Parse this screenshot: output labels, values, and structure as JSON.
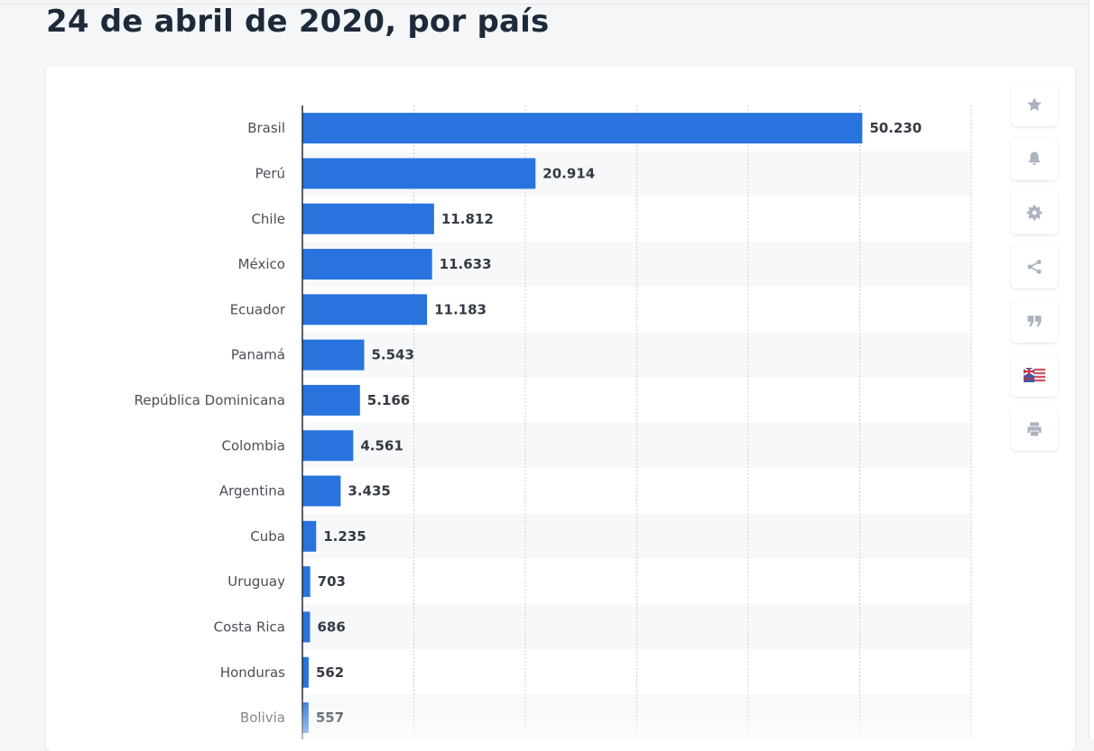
{
  "header": {
    "title": "24 de abril de 2020, por país"
  },
  "colors": {
    "bar": "#2873de",
    "grid": "#c9cdd3",
    "axis": "#1f2a36",
    "label": "#4a4f57",
    "value": "#333a44",
    "stripe": "#f7f8f9"
  },
  "toolbar": {
    "items": [
      {
        "name": "favorite-button",
        "icon": "star-icon"
      },
      {
        "name": "notification-button",
        "icon": "bell-icon"
      },
      {
        "name": "settings-button",
        "icon": "gear-icon"
      },
      {
        "name": "share-button",
        "icon": "share-icon"
      },
      {
        "name": "cite-button",
        "icon": "quote-icon"
      },
      {
        "name": "language-button",
        "icon": "flag-icon"
      },
      {
        "name": "print-button",
        "icon": "printer-icon"
      }
    ]
  },
  "chart_data": {
    "type": "bar",
    "orientation": "horizontal",
    "title": "24 de abril de 2020, por país",
    "xlabel": "",
    "ylabel": "",
    "xlim": [
      0,
      60000
    ],
    "grid": true,
    "categories": [
      "Brasil",
      "Perú",
      "Chile",
      "México",
      "Ecuador",
      "Panamá",
      "República Dominicana",
      "Colombia",
      "Argentina",
      "Cuba",
      "Uruguay",
      "Costa Rica",
      "Honduras",
      "Bolivia"
    ],
    "values": [
      50230,
      20914,
      11812,
      11633,
      11183,
      5543,
      5166,
      4561,
      3435,
      1235,
      703,
      686,
      562,
      557
    ],
    "value_labels": [
      "50.230",
      "20.914",
      "11.812",
      "11.633",
      "11.183",
      "5.543",
      "5.166",
      "4.561",
      "3.435",
      "1.235",
      "703",
      "686",
      "562",
      "557"
    ]
  }
}
